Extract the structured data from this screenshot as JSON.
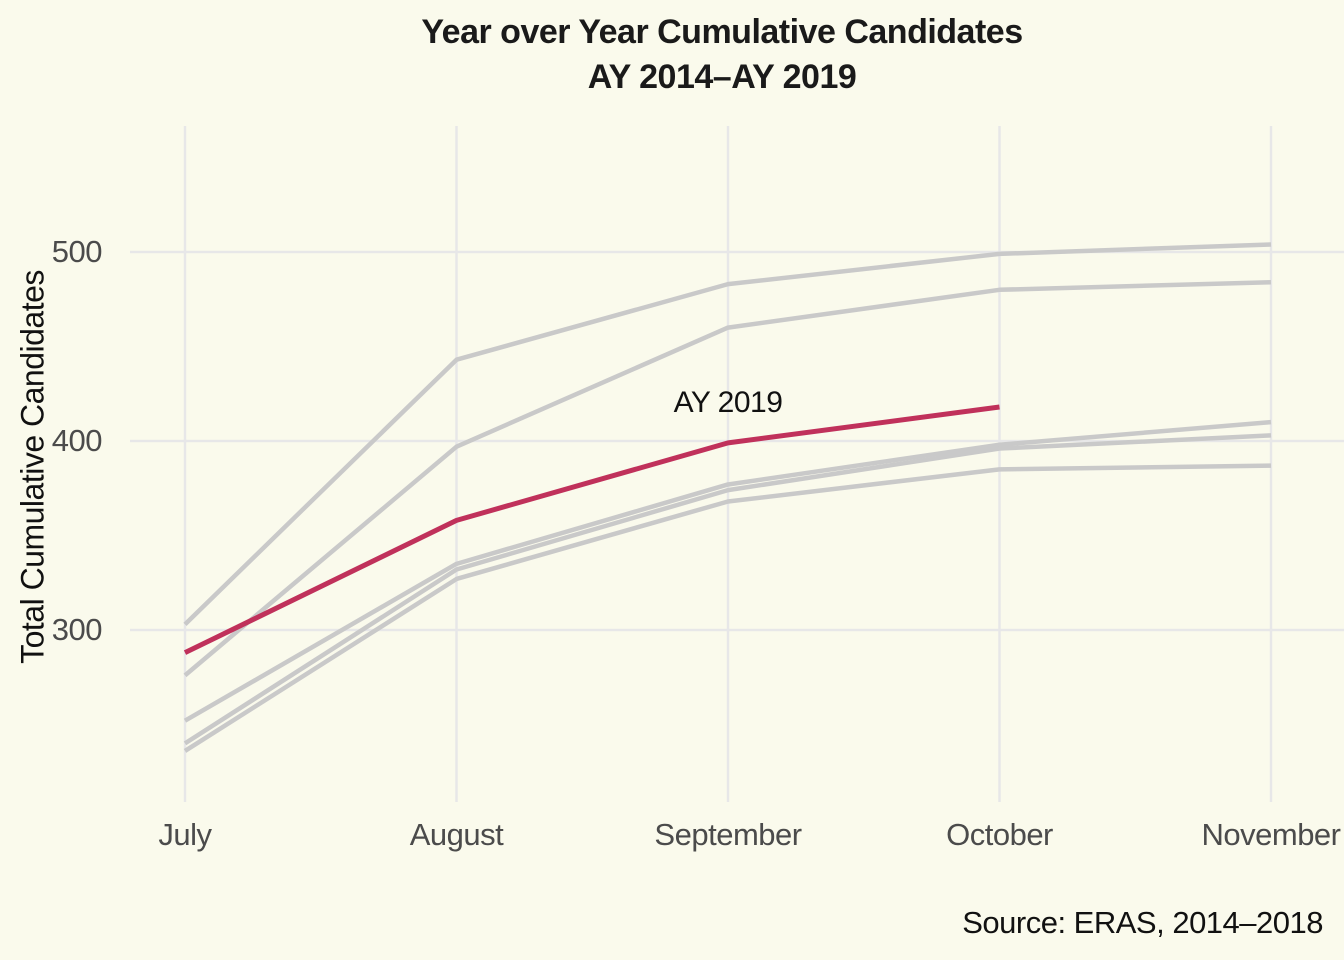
{
  "page": {
    "background": "#FAFAEC"
  },
  "header": {
    "title": "Year over Year Cumulative Candidates",
    "subtitle": "AY 2014–AY 2019"
  },
  "caption": {
    "text": "Source: ERAS, 2014–2018"
  },
  "chart_data": {
    "type": "line",
    "title": "Year over Year Cumulative Candidates",
    "subtitle": "AY 2014–AY 2019",
    "xlabel": "",
    "ylabel": "Total Cumulative Candidates",
    "categories": [
      "July",
      "August",
      "September",
      "October",
      "November"
    ],
    "y_ticks": [
      300,
      400,
      500
    ],
    "ylim_panel": [
      209,
      566
    ],
    "grid": true,
    "legend_position": "none",
    "annotation": {
      "text": "AY 2019",
      "x_category": "September",
      "y_value": 420
    },
    "series": [
      {
        "id": "gray-1",
        "label": "",
        "color": "#C9C9C9",
        "values": [
          303,
          443,
          483,
          499,
          504
        ]
      },
      {
        "id": "gray-2",
        "label": "",
        "color": "#C9C9C9",
        "values": [
          276,
          397,
          460,
          480,
          484
        ]
      },
      {
        "id": "gray-3",
        "label": "",
        "color": "#C9C9C9",
        "values": [
          252,
          335,
          377,
          398,
          410
        ]
      },
      {
        "id": "gray-4",
        "label": "",
        "color": "#C9C9C9",
        "values": [
          240,
          332,
          374,
          396,
          403
        ]
      },
      {
        "id": "gray-5",
        "label": "",
        "color": "#C9C9C9",
        "values": [
          236,
          327,
          368,
          385,
          387
        ]
      },
      {
        "id": "ay-2019",
        "label": "AY 2019",
        "color": "#C0315B",
        "values": [
          288,
          358,
          399,
          418,
          null
        ]
      }
    ],
    "colors": {
      "highlight": "#C0315B",
      "muted": "#C9C9C9",
      "grid": "#E7E7E8",
      "tick_text": "#4B4B4B",
      "text": "#1A1A1A"
    }
  }
}
